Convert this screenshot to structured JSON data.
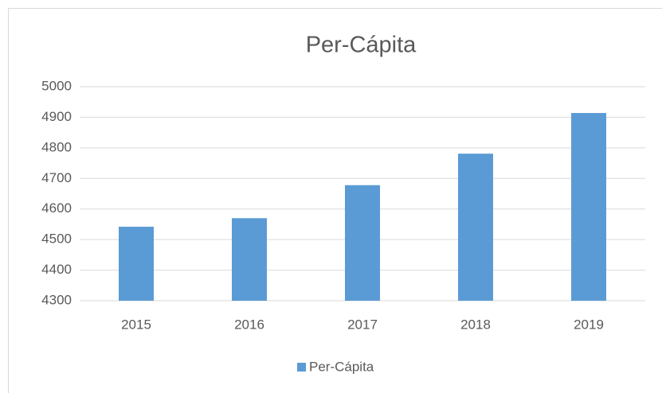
{
  "chart_data": {
    "type": "bar",
    "title": "Per-Cápita",
    "categories": [
      "2015",
      "2016",
      "2017",
      "2018",
      "2019"
    ],
    "series": [
      {
        "name": "Per-Cápita",
        "color": "#5b9bd5",
        "values": [
          4542,
          4570,
          4678,
          4781,
          4914
        ]
      }
    ],
    "ylim": [
      4300,
      5000
    ],
    "yticks": [
      4300,
      4400,
      4500,
      4600,
      4700,
      4800,
      4900,
      5000
    ],
    "grid": true,
    "legend": "bottom"
  }
}
